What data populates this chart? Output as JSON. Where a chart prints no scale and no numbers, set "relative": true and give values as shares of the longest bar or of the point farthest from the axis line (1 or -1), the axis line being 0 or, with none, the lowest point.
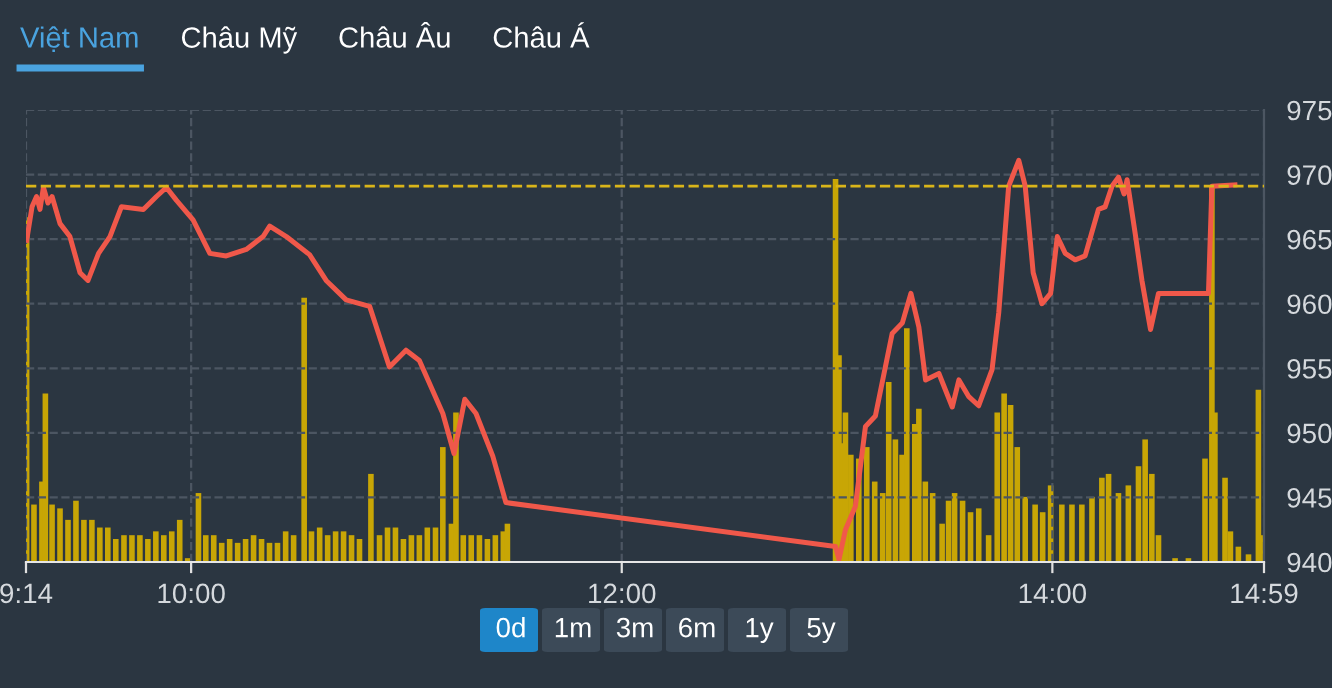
{
  "chart_data": [
    {
      "type": "line",
      "annotations": [
        "Việt Nam",
        "Châu Mỹ",
        "Châu Âu",
        "Châu Á",
        "0d",
        "1m",
        "3m",
        "6m",
        "1y",
        "5y"
      ],
      "x": [
        9.236,
        9.261,
        9.282,
        9.298,
        9.314,
        9.335,
        9.354,
        9.391,
        9.437,
        9.484,
        9.521,
        9.57,
        9.623,
        9.676,
        9.778,
        9.839,
        9.885,
        9.932,
        10.009,
        10.087,
        10.163,
        10.256,
        10.334,
        10.365,
        10.442,
        10.55,
        10.627,
        10.72,
        10.829,
        10.921,
        10.998,
        11.06,
        11.169,
        11.221,
        11.271,
        11.323,
        11.401,
        11.462,
        12.993,
        13.009,
        13.039,
        13.085,
        13.132,
        13.178,
        13.256,
        13.303,
        13.343,
        13.38,
        13.411,
        13.473,
        13.535,
        13.566,
        13.612,
        13.658,
        13.72,
        13.751,
        13.797,
        13.844,
        13.874,
        13.911,
        13.952,
        13.992,
        14.023,
        14.06,
        14.106,
        14.152,
        14.214,
        14.245,
        14.277,
        14.307,
        14.333,
        14.347,
        14.385,
        14.416,
        14.456,
        14.493,
        14.725,
        14.741,
        14.848
      ],
      "series": [
        {
          "color": "#f0584a",
          "values": [
            964.9,
            967.5,
            968.3,
            967.3,
            969.0,
            967.8,
            968.3,
            966.2,
            965.2,
            962.4,
            961.8,
            963.9,
            965.2,
            967.5,
            967.3,
            968.3,
            969.0,
            968.0,
            966.5,
            963.9,
            963.7,
            964.2,
            965.2,
            966.0,
            965.2,
            963.8,
            961.8,
            960.3,
            959.8,
            955.1,
            956.4,
            955.6,
            951.5,
            948.4,
            952.6,
            951.5,
            948.2,
            944.6,
            941.2,
            940.2,
            942.5,
            944.3,
            950.5,
            951.3,
            957.7,
            958.5,
            960.8,
            958.2,
            954.1,
            954.6,
            952.0,
            954.1,
            952.8,
            952.1,
            954.9,
            959.3,
            969.1,
            971.1,
            969.1,
            962.4,
            960.0,
            960.8,
            965.2,
            963.9,
            963.4,
            963.7,
            967.3,
            967.5,
            969.1,
            969.8,
            968.5,
            969.6,
            965.4,
            961.8,
            958.0,
            960.8,
            960.8,
            969.1,
            969.2
          ]
        }
      ],
      "xlim": [
        9.233,
        14.983
      ],
      "xticks": [
        {
          "value": 9.233,
          "label": "9:14"
        },
        {
          "value": 10,
          "label": "10:00"
        },
        {
          "value": 12,
          "label": "12:00"
        },
        {
          "value": 14,
          "label": "14:00"
        },
        {
          "value": 14.983,
          "label": "14:59"
        }
      ],
      "ylim": [
        940,
        975
      ],
      "yticks": [
        940,
        945,
        950,
        955,
        960,
        965,
        970,
        975
      ],
      "ref_lines": [
        {
          "axis": "y",
          "value": 969.1,
          "color": "#d9b51a",
          "line_style": "dashed"
        }
      ],
      "grid": true,
      "line_style": "solid"
    },
    {
      "type": "bar",
      "relative": true,
      "color": "#c8a605",
      "tick_labels": false,
      "xlim": [
        9.233,
        14.983
      ],
      "x": [
        9.236,
        9.27,
        9.307,
        9.323,
        9.354,
        9.391,
        9.428,
        9.465,
        9.502,
        9.539,
        9.576,
        9.613,
        9.65,
        9.688,
        9.725,
        9.762,
        9.799,
        9.836,
        9.873,
        9.91,
        9.947,
        9.984,
        10.034,
        10.068,
        10.105,
        10.142,
        10.179,
        10.216,
        10.253,
        10.29,
        10.327,
        10.364,
        10.401,
        10.439,
        10.476,
        10.525,
        10.559,
        10.597,
        10.634,
        10.671,
        10.708,
        10.745,
        10.782,
        10.835,
        10.875,
        10.912,
        10.949,
        10.986,
        11.023,
        11.06,
        11.097,
        11.135,
        11.169,
        11.209,
        11.23,
        11.264,
        11.301,
        11.339,
        11.376,
        11.413,
        11.45,
        11.469,
        12.993,
        13.009,
        13.024,
        13.039,
        13.064,
        13.101,
        13.138,
        13.175,
        13.212,
        13.24,
        13.271,
        13.302,
        13.324,
        13.361,
        13.38,
        13.41,
        13.444,
        13.488,
        13.518,
        13.546,
        13.583,
        13.62,
        13.658,
        13.704,
        13.744,
        13.776,
        13.806,
        13.837,
        13.874,
        13.92,
        13.955,
        13.992,
        14.044,
        14.091,
        14.137,
        14.184,
        14.23,
        14.261,
        14.307,
        14.353,
        14.4,
        14.431,
        14.462,
        14.493,
        14.57,
        14.632,
        14.709,
        14.741,
        14.755,
        14.802,
        14.827,
        14.864,
        14.911,
        14.957,
        14.973
      ],
      "values": [
        0.9,
        0.15,
        0.21,
        0.44,
        0.15,
        0.14,
        0.11,
        0.16,
        0.11,
        0.11,
        0.09,
        0.09,
        0.06,
        0.07,
        0.07,
        0.07,
        0.06,
        0.08,
        0.07,
        0.08,
        0.11,
        0.01,
        0.18,
        0.07,
        0.07,
        0.05,
        0.06,
        0.05,
        0.06,
        0.07,
        0.06,
        0.05,
        0.05,
        0.08,
        0.07,
        0.69,
        0.08,
        0.09,
        0.07,
        0.08,
        0.08,
        0.07,
        0.06,
        0.23,
        0.07,
        0.09,
        0.09,
        0.06,
        0.07,
        0.07,
        0.09,
        0.09,
        0.3,
        0.1,
        0.39,
        0.07,
        0.07,
        0.07,
        0.06,
        0.07,
        0.08,
        0.1,
        1,
        0.54,
        0.31,
        0.39,
        0.28,
        0.27,
        0.3,
        0.21,
        0.18,
        0.47,
        0.32,
        0.28,
        0.61,
        0.36,
        0.4,
        0.21,
        0.18,
        0.1,
        0.16,
        0.18,
        0.16,
        0.13,
        0.14,
        0.07,
        0.39,
        0.44,
        0.41,
        0.3,
        0.17,
        0.15,
        0.13,
        0.2,
        0.15,
        0.15,
        0.15,
        0.17,
        0.22,
        0.23,
        0.18,
        0.2,
        0.25,
        0.32,
        0.23,
        0.07,
        0.01,
        0.01,
        0.27,
        0.98,
        0.39,
        0.22,
        0.08,
        0.04,
        0.02,
        0.45,
        0.07
      ]
    }
  ]
}
